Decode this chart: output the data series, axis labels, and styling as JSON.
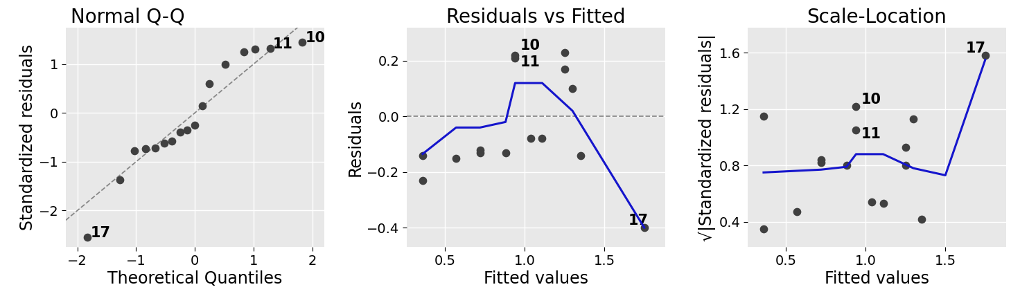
{
  "qq_plot": {
    "title": "Normal Q-Q",
    "xlabel": "Theoretical Quantiles",
    "ylabel": "Standardized residuals",
    "theoretical_quantiles": [
      -1.83,
      -1.28,
      -1.03,
      -0.84,
      -0.67,
      -0.52,
      -0.39,
      -0.25,
      -0.13,
      0.0,
      0.13,
      0.25,
      0.52,
      0.84,
      1.03,
      1.28,
      1.83
    ],
    "standardized_residuals": [
      -2.55,
      -1.37,
      -0.78,
      -0.73,
      -0.72,
      -0.62,
      -0.58,
      -0.4,
      -0.35,
      -0.25,
      0.15,
      0.6,
      1.0,
      1.25,
      1.3,
      1.32,
      1.45
    ],
    "ref_line_x": [
      -2.2,
      2.2
    ],
    "ref_line_y": [
      -2.2,
      2.2
    ],
    "annotated_points": {
      "17": [
        -1.83,
        -2.55
      ],
      "11": [
        1.28,
        1.32
      ],
      "10": [
        1.83,
        1.45
      ]
    },
    "annot_offsets": {
      "17": [
        0.05,
        0.0
      ],
      "11": [
        0.05,
        0.0
      ],
      "10": [
        0.05,
        0.0
      ]
    },
    "xlim": [
      -2.2,
      2.2
    ],
    "ylim": [
      -2.75,
      1.75
    ],
    "xticks": [
      -2,
      -1,
      0,
      1,
      2
    ],
    "yticks": [
      -2,
      -1,
      0,
      1
    ]
  },
  "resid_fitted": {
    "title": "Residuals vs Fitted",
    "xlabel": "Fitted values",
    "ylabel": "Residuals",
    "fitted": [
      0.36,
      0.36,
      0.57,
      0.72,
      0.72,
      0.88,
      0.94,
      0.94,
      1.04,
      1.11,
      1.25,
      1.25,
      1.3,
      1.35,
      1.75
    ],
    "residuals": [
      -0.14,
      -0.23,
      -0.15,
      -0.12,
      -0.13,
      -0.13,
      0.22,
      0.21,
      -0.08,
      -0.08,
      0.23,
      0.17,
      0.1,
      -0.14,
      -0.4
    ],
    "smooth_x": [
      0.36,
      0.57,
      0.72,
      0.88,
      0.94,
      1.11,
      1.3,
      1.75
    ],
    "smooth_y": [
      -0.135,
      -0.04,
      -0.04,
      -0.02,
      0.12,
      0.12,
      0.02,
      -0.4
    ],
    "ref_y": 0.0,
    "annotated_points": {
      "10": [
        0.94,
        0.22
      ],
      "11": [
        0.94,
        0.21
      ],
      "17": [
        1.75,
        -0.4
      ]
    },
    "annot_offsets": {
      "10": [
        0.03,
        0.02
      ],
      "11": [
        0.03,
        -0.03
      ],
      "17": [
        -0.1,
        0.01
      ]
    },
    "xlim": [
      0.26,
      1.88
    ],
    "ylim": [
      -0.47,
      0.32
    ],
    "xticks": [
      0.5,
      1.0,
      1.5
    ],
    "yticks": [
      -0.4,
      -0.2,
      0.0,
      0.2
    ]
  },
  "scale_location": {
    "title": "Scale-Location",
    "xlabel": "Fitted values",
    "ylabel": "√|Standardized residuals|",
    "fitted": [
      0.36,
      0.36,
      0.57,
      0.72,
      0.72,
      0.88,
      0.94,
      0.94,
      1.04,
      1.11,
      1.25,
      1.25,
      1.3,
      1.35,
      1.75
    ],
    "sqrt_abs_resid": [
      0.35,
      1.15,
      0.47,
      0.82,
      0.84,
      0.8,
      1.22,
      1.05,
      0.54,
      0.53,
      0.8,
      0.93,
      1.13,
      0.42,
      1.58
    ],
    "smooth_x": [
      0.36,
      0.72,
      0.88,
      0.94,
      1.11,
      1.3,
      1.5,
      1.75
    ],
    "smooth_y": [
      0.75,
      0.77,
      0.79,
      0.88,
      0.88,
      0.78,
      0.73,
      1.55
    ],
    "annotated_points": {
      "10": [
        0.94,
        1.22
      ],
      "11": [
        0.94,
        1.05
      ],
      "17": [
        1.75,
        1.58
      ]
    },
    "annot_offsets": {
      "10": [
        0.03,
        0.02
      ],
      "11": [
        0.03,
        -0.06
      ],
      "17": [
        -0.12,
        0.02
      ]
    },
    "xlim": [
      0.26,
      1.88
    ],
    "ylim": [
      0.22,
      1.78
    ],
    "xticks": [
      0.5,
      1.0,
      1.5
    ],
    "yticks": [
      0.4,
      0.8,
      1.2,
      1.6
    ]
  },
  "bg_color": "#e8e8e8",
  "dot_color": "#404040",
  "dot_size": 55,
  "line_color": "#1515cc",
  "line_width": 2.2,
  "title_fontsize": 20,
  "label_fontsize": 17,
  "tick_fontsize": 14,
  "annot_fontsize": 15
}
